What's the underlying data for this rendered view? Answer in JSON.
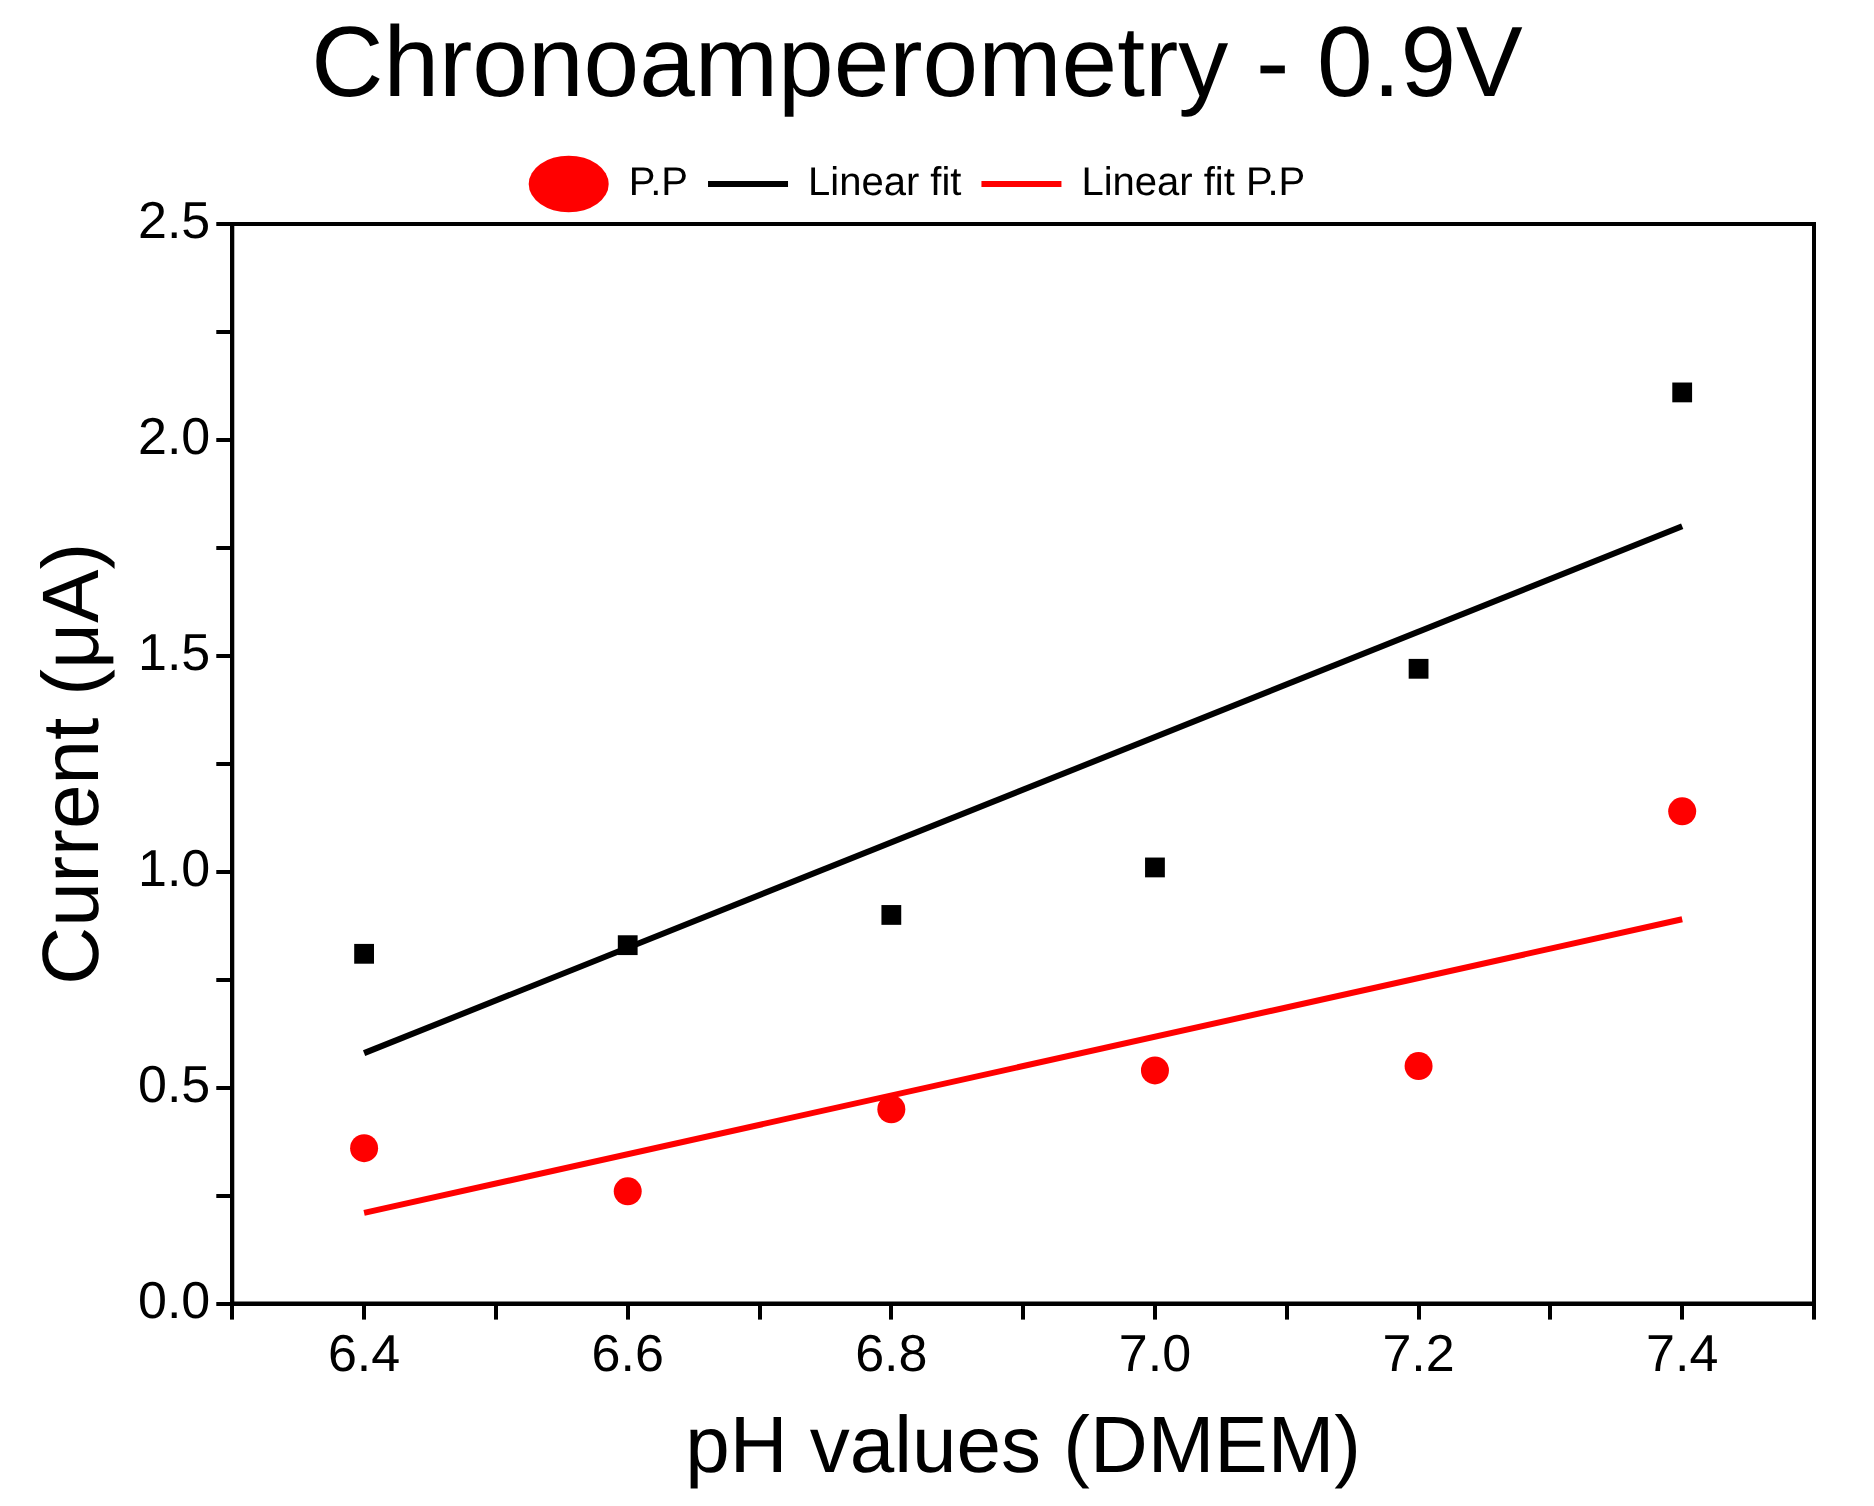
{
  "chart_data": {
    "type": "scatter",
    "title": "Chronoamperometry - 0.9V",
    "xlabel": "pH values (DMEM)",
    "ylabel": "Current (μA)",
    "xlim": [
      6.3,
      7.5
    ],
    "xticks": [
      {
        "value": 6.3,
        "label": null
      },
      6.4,
      {
        "value": 6.5,
        "label": null
      },
      6.6,
      {
        "value": 6.7,
        "label": null
      },
      6.8,
      {
        "value": 6.9,
        "label": null
      },
      {
        "value": 7.0,
        "label": "7.0"
      },
      {
        "value": 7.1,
        "label": null
      },
      7.2,
      {
        "value": 7.3,
        "label": null
      },
      7.4,
      {
        "value": 7.5,
        "label": null
      }
    ],
    "ylim": [
      0,
      2.5
    ],
    "yticks": [
      {
        "value": 0,
        "label": "0.0"
      },
      {
        "value": 0.25,
        "label": null
      },
      0.5,
      {
        "value": 0.75,
        "label": null
      },
      {
        "value": 1,
        "label": "1.0"
      },
      {
        "value": 1.25,
        "label": null
      },
      1.5,
      {
        "value": 1.75,
        "label": null
      },
      {
        "value": 2,
        "label": "2.0"
      },
      {
        "value": 2.25,
        "label": null
      },
      2.5
    ],
    "grid": false,
    "legend": "top",
    "series": [
      {
        "type": "scatter",
        "marker": "square",
        "color": "#000000",
        "x": [
          6.4,
          6.6,
          6.8,
          7.0,
          7.2,
          7.4
        ],
        "values": [
          0.81,
          0.83,
          0.9,
          1.01,
          1.47,
          2.11
        ]
      },
      {
        "name": "P.P",
        "type": "scatter",
        "marker": "circle",
        "color": "#ff0000",
        "x": [
          6.4,
          6.6,
          6.8,
          7.0,
          7.2,
          7.4
        ],
        "values": [
          0.36,
          0.26,
          0.45,
          0.54,
          0.55,
          1.14
        ]
      },
      {
        "name": "Linear fit",
        "type": "line",
        "line_style": "solid",
        "marker": "none",
        "color": "#000000",
        "x": [
          6.4,
          7.4
        ],
        "values": [
          0.58,
          1.8
        ]
      },
      {
        "name": "Linear fit P.P",
        "type": "line",
        "line_style": "solid",
        "marker": "none",
        "color": "#ff0000",
        "x": [
          6.4,
          7.4
        ],
        "values": [
          0.21,
          0.89
        ]
      }
    ]
  }
}
